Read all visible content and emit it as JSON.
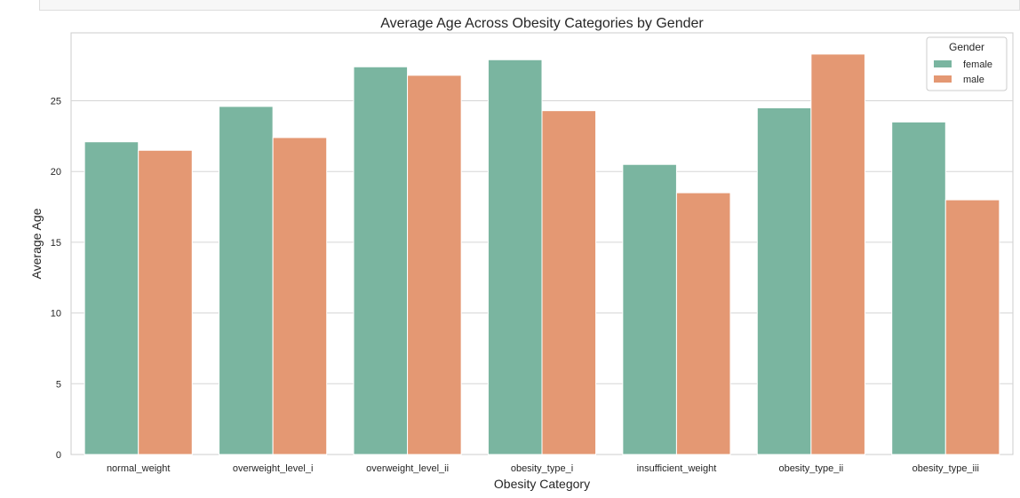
{
  "chart_data": {
    "type": "bar",
    "title": "Average Age Across Obesity Categories by Gender",
    "xlabel": "Obesity Category",
    "ylabel": "Average Age",
    "categories": [
      "normal_weight",
      "overweight_level_i",
      "overweight_level_ii",
      "obesity_type_i",
      "insufficient_weight",
      "obesity_type_ii",
      "obesity_type_iii"
    ],
    "series": [
      {
        "name": "female",
        "color": "#7ab5a0",
        "values": [
          22.1,
          24.6,
          27.4,
          27.9,
          20.5,
          24.5,
          23.5
        ]
      },
      {
        "name": "male",
        "color": "#e49873",
        "values": [
          21.5,
          22.4,
          26.8,
          24.3,
          18.5,
          28.3,
          18.0
        ]
      }
    ],
    "ylim": [
      0,
      29.8
    ],
    "yticks": [
      0,
      5,
      10,
      15,
      20,
      25
    ],
    "grid": "horizontal",
    "legend": {
      "title": "Gender",
      "position": "top-right"
    }
  }
}
